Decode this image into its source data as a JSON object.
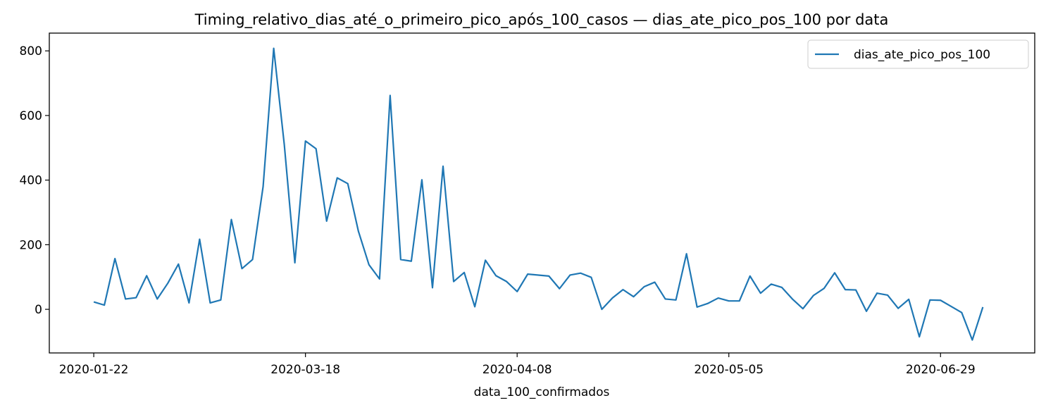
{
  "chart_data": {
    "type": "line",
    "title": "Timing_relativo_dias_até_o_primeiro_pico_após_100_casos — dias_ate_pico_pos_100 por data",
    "xlabel": "data_100_confirmados",
    "ylabel": "",
    "x_tick_labels": [
      "2020-01-22",
      "2020-03-18",
      "2020-04-08",
      "2020-05-05",
      "2020-06-29"
    ],
    "x_tick_indices": [
      0,
      20,
      40,
      60,
      80
    ],
    "y_ticks": [
      0,
      200,
      400,
      600,
      800
    ],
    "ylim": [
      -135,
      855
    ],
    "xlim": [
      -4.2,
      88.9
    ],
    "grid": false,
    "legend_position": "top-right",
    "line_color": "#1f77b4",
    "series": [
      {
        "name": "dias_ate_pico_pos_100",
        "values": [
          23,
          13,
          157,
          32,
          36,
          104,
          32,
          81,
          140,
          20,
          217,
          20,
          29,
          278,
          126,
          154,
          380,
          808,
          510,
          144,
          521,
          497,
          273,
          407,
          389,
          242,
          138,
          94,
          662,
          154,
          149,
          401,
          67,
          443,
          86,
          114,
          8,
          152,
          104,
          86,
          55,
          109,
          106,
          103,
          64,
          106,
          112,
          99,
          0,
          35,
          61,
          39,
          70,
          84,
          32,
          29,
          172,
          7,
          18,
          35,
          26,
          26,
          103,
          50,
          78,
          68,
          32,
          2,
          43,
          65,
          113,
          61,
          60,
          -6,
          50,
          44,
          3,
          31,
          -85,
          29,
          28,
          9,
          -10,
          -95,
          7
        ]
      }
    ]
  }
}
